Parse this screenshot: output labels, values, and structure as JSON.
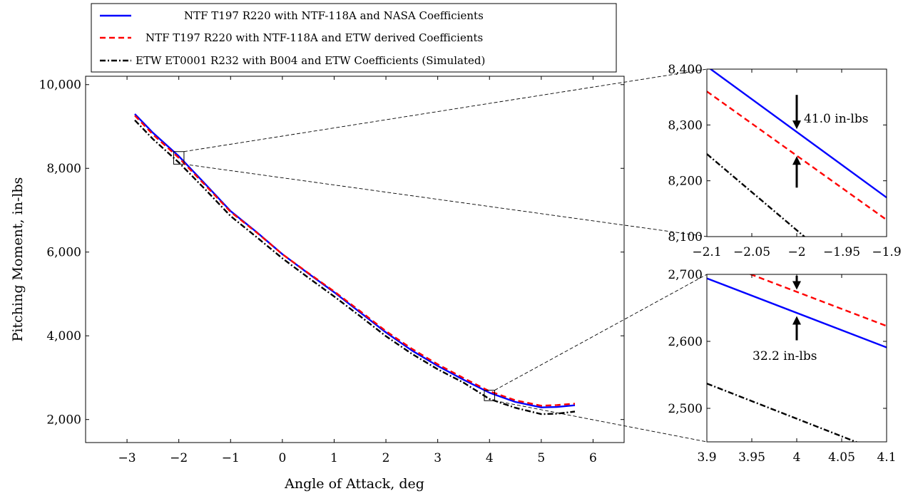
{
  "chart_data": [
    {
      "type": "line",
      "id": "main",
      "xlabel": "Angle of Attack, deg",
      "ylabel": "Pitching Moment, in-lbs",
      "xlim": [
        -3.8,
        6.6
      ],
      "ylim": [
        1450,
        10200
      ],
      "xticks": [
        -3,
        -2,
        -1,
        0,
        1,
        2,
        3,
        4,
        5,
        6
      ],
      "xtick_labels": [
        "−3",
        "−2",
        "−1",
        "0",
        "1",
        "2",
        "3",
        "4",
        "5",
        "6"
      ],
      "yticks": [
        2000,
        4000,
        6000,
        8000,
        10000
      ],
      "ytick_labels": [
        "2,000",
        "4,000",
        "6,000",
        "8,000",
        "10,000"
      ],
      "legend": {
        "placement": "top-left",
        "entries": [
          "NTF T197 R220 with NTF-118A and NASA Coefficients",
          "NTF T197 R220 with NTF-118A and ETW derived Coefficients",
          "ETW ET0001 R232 with B004 and ETW Coefficients (Simulated)"
        ]
      },
      "grid": false,
      "zoom_boxes": [
        {
          "x": [
            -2.1,
            -1.9
          ],
          "y": [
            8100,
            8400
          ]
        },
        {
          "x": [
            3.9,
            4.1
          ],
          "y": [
            2450,
            2700
          ]
        }
      ],
      "series": [
        {
          "name": "NTF T197 R220 with NTF-118A and NASA Coefficients",
          "color": "#0000ff",
          "dash": "solid",
          "x": [
            -2.85,
            -2.5,
            -2,
            -1.5,
            -1,
            -0.5,
            0,
            0.5,
            1,
            1.5,
            2,
            2.5,
            3,
            3.5,
            4,
            4.5,
            5,
            5.3,
            5.65
          ],
          "y": [
            9300,
            8850,
            8290,
            7640,
            6980,
            6480,
            5950,
            5490,
            5040,
            4560,
            4080,
            3650,
            3280,
            2950,
            2640,
            2420,
            2290,
            2300,
            2340
          ]
        },
        {
          "name": "NTF T197 R220 with NTF-118A and ETW derived Coefficients",
          "color": "#ff0000",
          "dash": "dashed",
          "x": [
            -2.85,
            -2.5,
            -2,
            -1.5,
            -1,
            -0.5,
            0,
            0.5,
            1,
            1.5,
            2,
            2.5,
            3,
            3.5,
            4,
            4.5,
            5,
            5.3,
            5.65
          ],
          "y": [
            9260,
            8810,
            8250,
            7610,
            6960,
            6470,
            5950,
            5500,
            5060,
            4590,
            4110,
            3690,
            3320,
            2990,
            2675,
            2460,
            2330,
            2345,
            2380
          ]
        },
        {
          "name": "ETW ET0001 R232 with B004 and ETW Coefficients (Simulated)",
          "color": "#000000",
          "dash": "dashdot",
          "x": [
            -2.85,
            -2.5,
            -2,
            -1.5,
            -1,
            -0.5,
            0,
            0.5,
            1,
            1.5,
            2,
            2.5,
            3,
            3.5,
            4,
            4.5,
            5,
            5.3,
            5.65
          ],
          "y": [
            9150,
            8700,
            8140,
            7510,
            6860,
            6360,
            5850,
            5390,
            4940,
            4470,
            3990,
            3570,
            3200,
            2880,
            2490,
            2280,
            2130,
            2140,
            2190
          ]
        }
      ]
    },
    {
      "type": "line",
      "id": "zoom_top",
      "xlim": [
        -2.1,
        -1.9
      ],
      "ylim": [
        8100,
        8400
      ],
      "xticks": [
        -2.1,
        -2.05,
        -2,
        -1.95,
        -1.9
      ],
      "xtick_labels": [
        "−2.1",
        "−2.05",
        "−2",
        "−1.95",
        "−1.9"
      ],
      "yticks": [
        8100,
        8200,
        8300,
        8400
      ],
      "ytick_labels": [
        "8,100",
        "8,200",
        "8,300",
        "8,400"
      ],
      "annotation": {
        "text": "41.0 in-lbs",
        "x": -2,
        "y_top": 8290,
        "y_bottom": 8249
      },
      "series": [
        {
          "color": "#0000ff",
          "dash": "solid",
          "x": [
            -2.1,
            -1.9
          ],
          "y": [
            8405,
            8170
          ]
        },
        {
          "color": "#ff0000",
          "dash": "dashed",
          "x": [
            -2.1,
            -1.9
          ],
          "y": [
            8360,
            8130
          ]
        },
        {
          "color": "#000000",
          "dash": "dashdot",
          "x": [
            -2.1,
            -1.9
          ],
          "y": [
            8248,
            7975
          ]
        }
      ]
    },
    {
      "type": "line",
      "id": "zoom_bottom",
      "xlim": [
        3.9,
        4.1
      ],
      "ylim": [
        2450,
        2700
      ],
      "xticks": [
        3.9,
        3.95,
        4,
        4.05,
        4.1
      ],
      "xtick_labels": [
        "3.9",
        "3.95",
        "4",
        "4.05",
        "4.1"
      ],
      "yticks": [
        2500,
        2600,
        2700
      ],
      "ytick_labels": [
        "2,500",
        "2,600",
        "2,700"
      ],
      "annotation": {
        "text": "32.2 in-lbs",
        "x": 4,
        "y_top": 2674,
        "y_bottom": 2642
      },
      "series": [
        {
          "color": "#0000ff",
          "dash": "solid",
          "x": [
            3.9,
            4.1
          ],
          "y": [
            2694,
            2591
          ]
        },
        {
          "color": "#ff0000",
          "dash": "dashed",
          "x": [
            3.9,
            4.1
          ],
          "y": [
            2725,
            2623
          ]
        },
        {
          "color": "#000000",
          "dash": "dashdot",
          "x": [
            3.9,
            4.1
          ],
          "y": [
            2537,
            2432
          ]
        }
      ]
    }
  ]
}
